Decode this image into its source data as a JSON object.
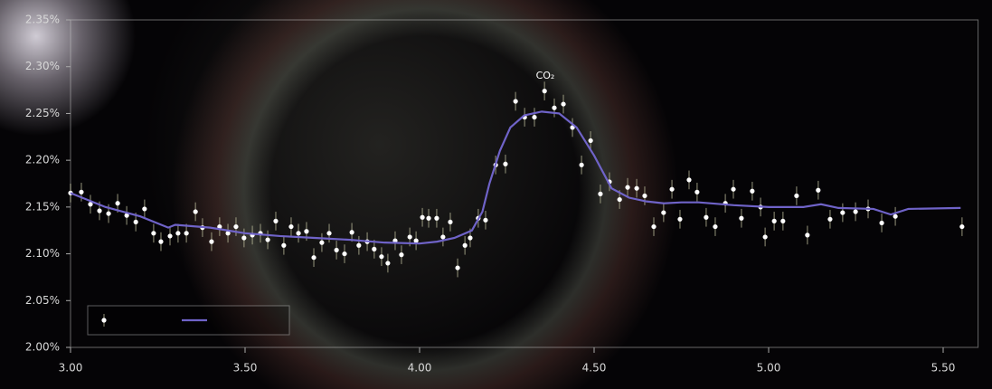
{
  "chart_data": {
    "type": "scatter",
    "xlim": [
      3.0,
      5.6
    ],
    "ylim": [
      2.0,
      2.35
    ],
    "xticks": [
      {
        "value": 3.0,
        "label": "3.00"
      },
      {
        "value": 3.5,
        "label": "3.50"
      },
      {
        "value": 4.0,
        "label": "4.00"
      },
      {
        "value": 4.5,
        "label": "4.50"
      },
      {
        "value": 5.0,
        "label": "5.00"
      },
      {
        "value": 5.5,
        "label": "5.50"
      }
    ],
    "yticks": [
      {
        "value": 2.0,
        "label": "2.00%"
      },
      {
        "value": 2.05,
        "label": "2.05%"
      },
      {
        "value": 2.1,
        "label": "2.10%"
      },
      {
        "value": 2.15,
        "label": "2.15%"
      },
      {
        "value": 2.2,
        "label": "2.20%"
      },
      {
        "value": 2.25,
        "label": "2.25%"
      },
      {
        "value": 2.3,
        "label": "2.30%"
      },
      {
        "value": 2.35,
        "label": "2.35%"
      }
    ],
    "legend": "lower left",
    "annotations": [
      {
        "text": "CO₂",
        "x": 4.36,
        "y": 2.29
      }
    ],
    "series": [
      {
        "type": "scatter",
        "color": "#ffffff",
        "error": 0.01,
        "x": [
          3.0,
          3.031,
          3.057,
          3.083,
          3.109,
          3.135,
          3.161,
          3.187,
          3.212,
          3.238,
          3.259,
          3.285,
          3.308,
          3.332,
          3.358,
          3.378,
          3.404,
          3.427,
          3.451,
          3.474,
          3.497,
          3.521,
          3.544,
          3.565,
          3.588,
          3.611,
          3.632,
          3.653,
          3.676,
          3.697,
          3.72,
          3.741,
          3.762,
          3.785,
          3.806,
          3.826,
          3.85,
          3.87,
          3.891,
          3.909,
          3.93,
          3.948,
          3.972,
          3.99,
          4.008,
          4.026,
          4.049,
          4.067,
          4.088,
          4.109,
          4.13,
          4.145,
          4.168,
          4.189,
          4.218,
          4.246,
          4.275,
          4.301,
          4.329,
          4.358,
          4.386,
          4.412,
          4.438,
          4.464,
          4.49,
          4.518,
          4.544,
          4.573,
          4.596,
          4.622,
          4.645,
          4.671,
          4.699,
          4.723,
          4.746,
          4.772,
          4.795,
          4.821,
          4.847,
          4.876,
          4.899,
          4.922,
          4.953,
          4.977,
          4.99,
          5.016,
          5.041,
          5.08,
          5.111,
          5.142,
          5.176,
          5.212,
          5.249,
          5.285,
          5.324,
          5.363,
          5.554
        ],
        "values": [
          2.165,
          2.166,
          2.153,
          2.146,
          2.143,
          2.154,
          2.141,
          2.134,
          2.148,
          2.122,
          2.113,
          2.119,
          2.122,
          2.122,
          2.145,
          2.128,
          2.113,
          2.129,
          2.122,
          2.129,
          2.117,
          2.12,
          2.122,
          2.115,
          2.135,
          2.109,
          2.129,
          2.122,
          2.124,
          2.096,
          2.112,
          2.122,
          2.104,
          2.1,
          2.123,
          2.109,
          2.113,
          2.105,
          2.097,
          2.09,
          2.114,
          2.099,
          2.118,
          2.114,
          2.139,
          2.138,
          2.138,
          2.118,
          2.134,
          2.085,
          2.109,
          2.117,
          2.138,
          2.136,
          2.195,
          2.196,
          2.263,
          2.246,
          2.246,
          2.274,
          2.256,
          2.26,
          2.235,
          2.195,
          2.221,
          2.164,
          2.177,
          2.158,
          2.171,
          2.17,
          2.162,
          2.129,
          2.144,
          2.169,
          2.137,
          2.179,
          2.166,
          2.139,
          2.129,
          2.154,
          2.169,
          2.138,
          2.167,
          2.15,
          2.118,
          2.135,
          2.135,
          2.162,
          2.12,
          2.168,
          2.137,
          2.144,
          2.145,
          2.148,
          2.133,
          2.14,
          2.129
        ]
      },
      {
        "type": "line",
        "color": "#6f63c8",
        "x": [
          3.0,
          3.1,
          3.2,
          3.28,
          3.3,
          3.4,
          3.5,
          3.6,
          3.7,
          3.8,
          3.9,
          4.0,
          4.05,
          4.1,
          4.15,
          4.18,
          4.2,
          4.23,
          4.26,
          4.3,
          4.35,
          4.4,
          4.45,
          4.5,
          4.55,
          4.6,
          4.65,
          4.7,
          4.75,
          4.8,
          4.9,
          5.0,
          5.1,
          5.15,
          5.2,
          5.3,
          5.35,
          5.4,
          5.55
        ],
        "values": [
          2.165,
          2.15,
          2.14,
          2.128,
          2.131,
          2.128,
          2.122,
          2.119,
          2.117,
          2.115,
          2.112,
          2.111,
          2.113,
          2.117,
          2.125,
          2.145,
          2.175,
          2.21,
          2.235,
          2.248,
          2.252,
          2.25,
          2.235,
          2.205,
          2.17,
          2.16,
          2.156,
          2.154,
          2.155,
          2.155,
          2.152,
          2.15,
          2.15,
          2.153,
          2.149,
          2.148,
          2.142,
          2.148,
          2.149
        ]
      }
    ]
  }
}
